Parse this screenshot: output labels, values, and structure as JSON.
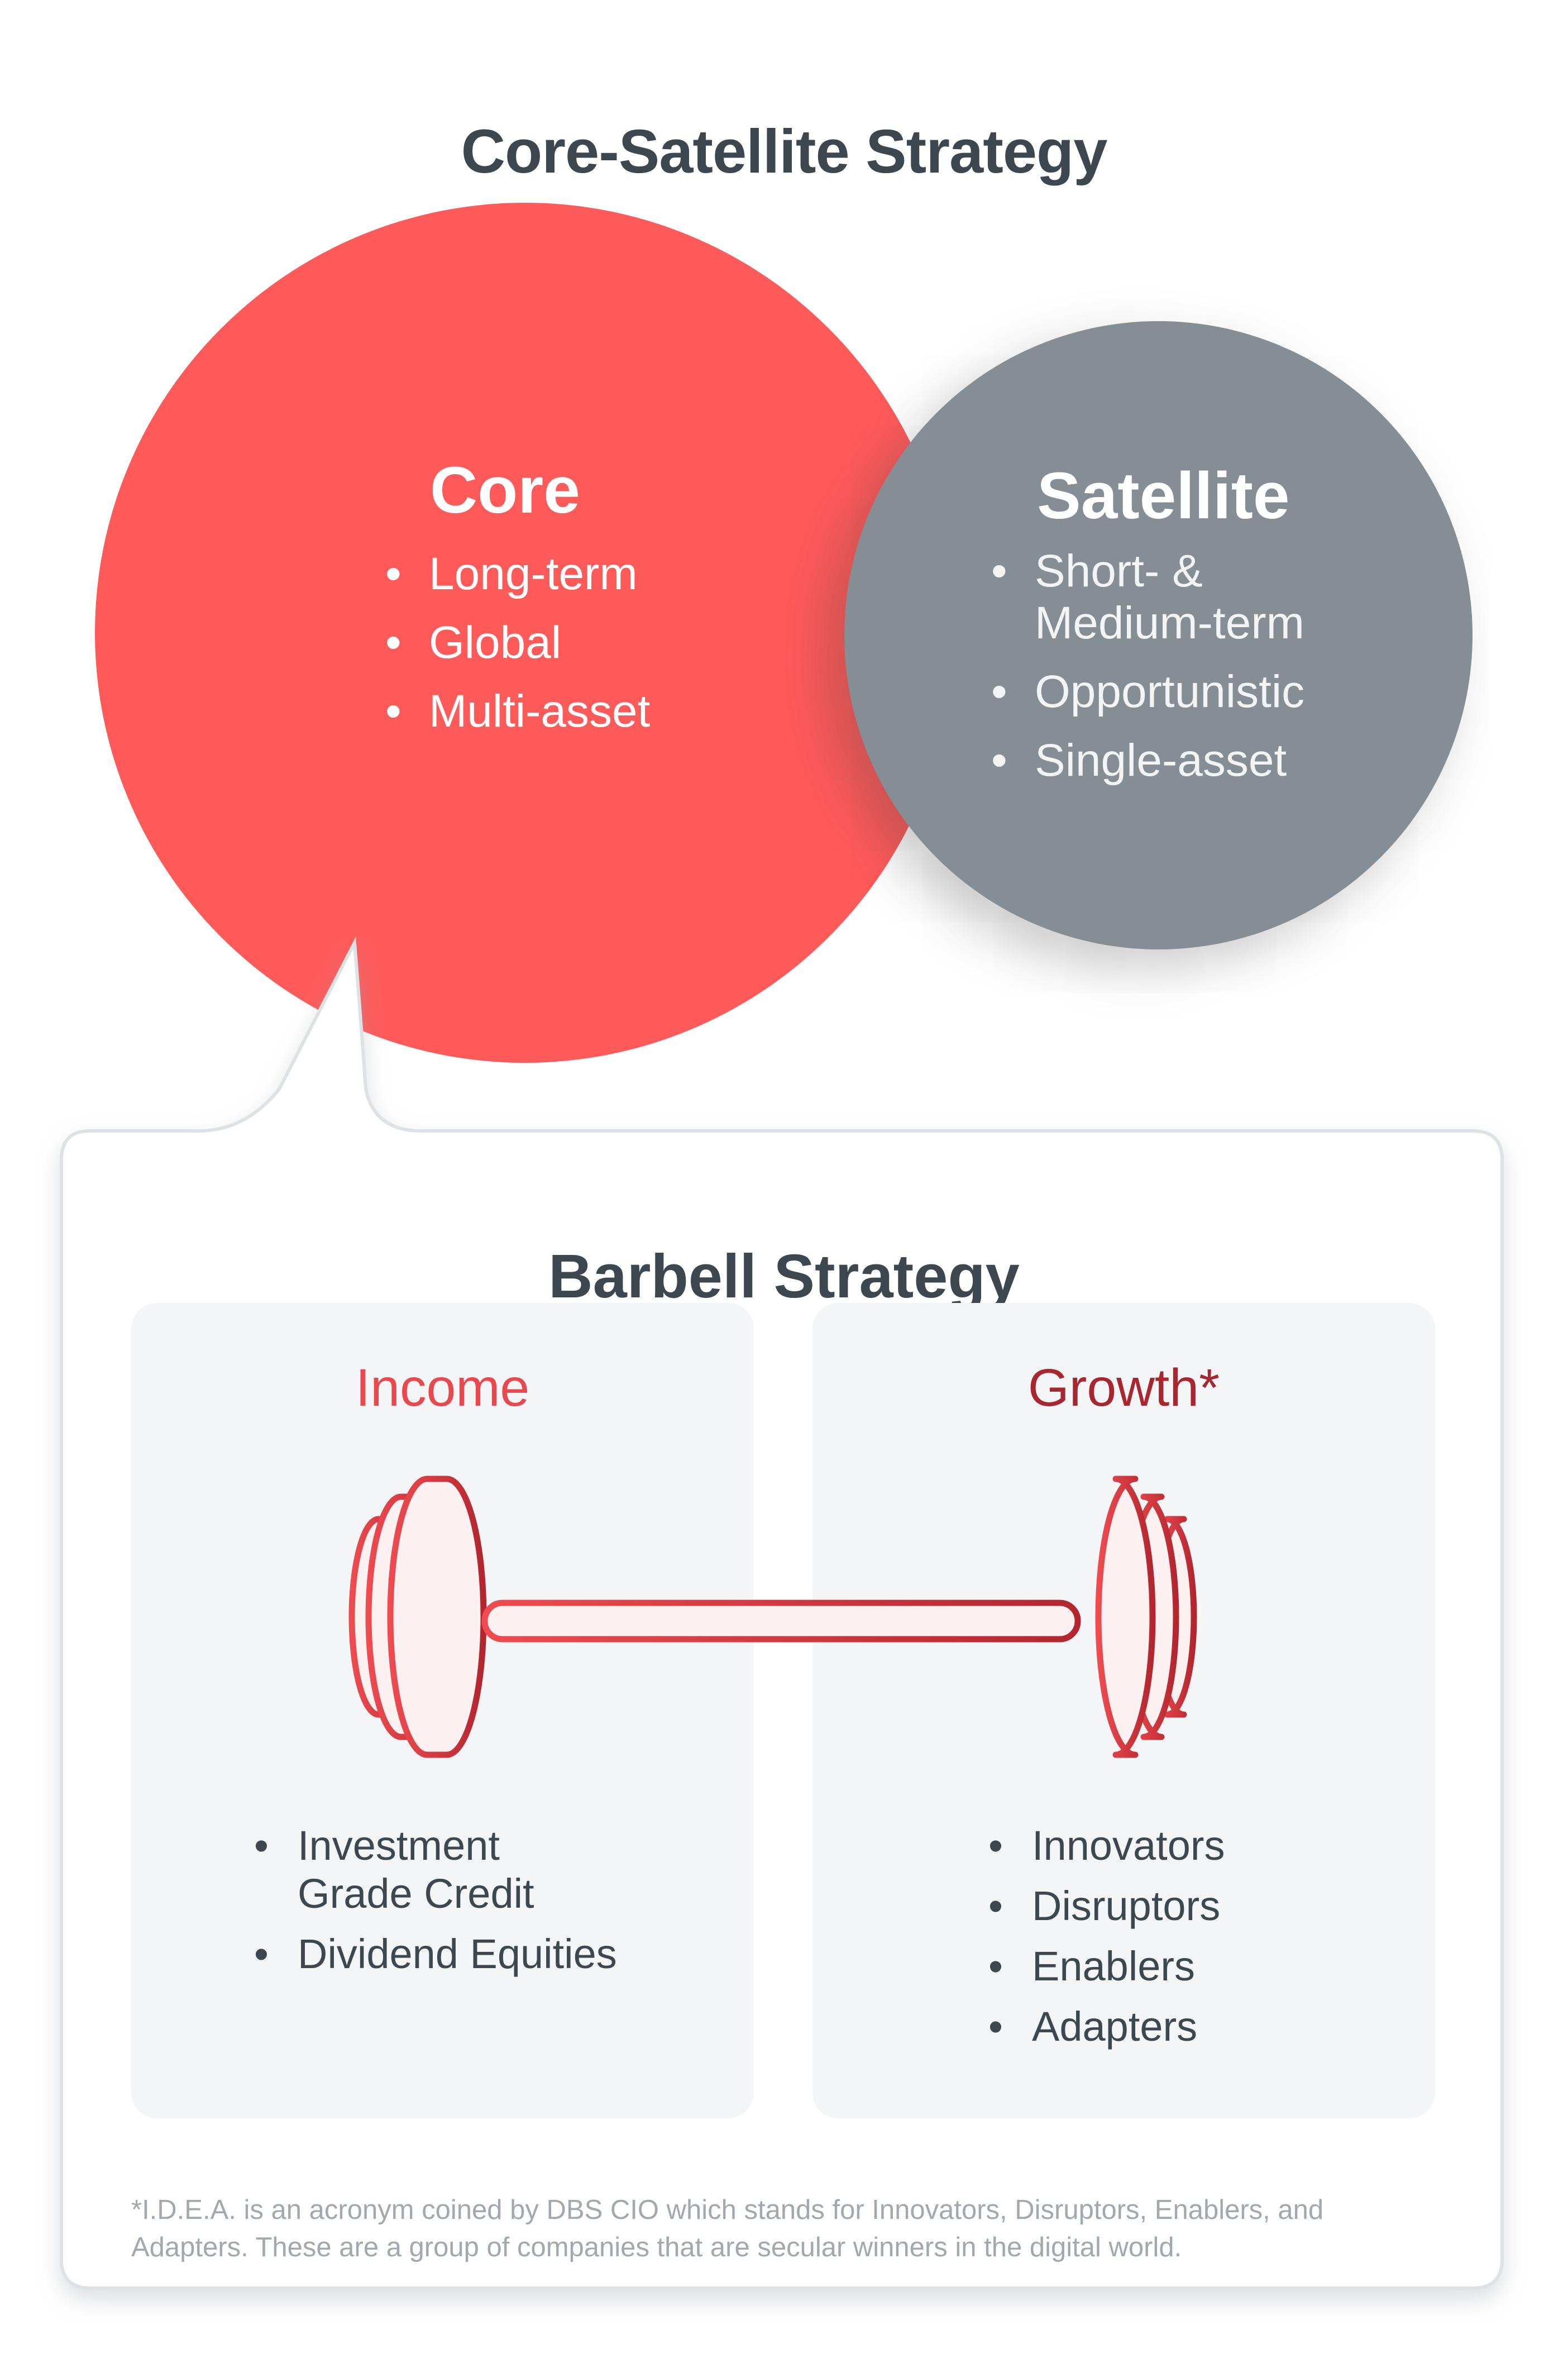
{
  "title": "Core-Satellite Strategy",
  "core": {
    "heading": "Core",
    "items": [
      "Long-term",
      "Global",
      "Multi-asset"
    ],
    "color": "#ff5a5a"
  },
  "satellite": {
    "heading": "Satellite",
    "items": [
      "Short- & Medium-term",
      "Opportunistic",
      "Single-asset"
    ],
    "color": "#858e94"
  },
  "barbell": {
    "title": "Barbell Strategy",
    "income": {
      "heading": "Income",
      "items": [
        "Investment Grade Credit",
        "Dividend Equities"
      ],
      "color": "#e8484e"
    },
    "growth": {
      "heading": "Growth*",
      "items": [
        "Innovators",
        "Disruptors",
        "Enablers",
        "Adapters"
      ],
      "color": "#a8262f"
    }
  },
  "footnote": "*I.D.E.A. is an acronym coined by DBS CIO which stands for Innovators, Disruptors, Enablers, and Adapters. These are a group of companies that are secular winners in the digital world."
}
